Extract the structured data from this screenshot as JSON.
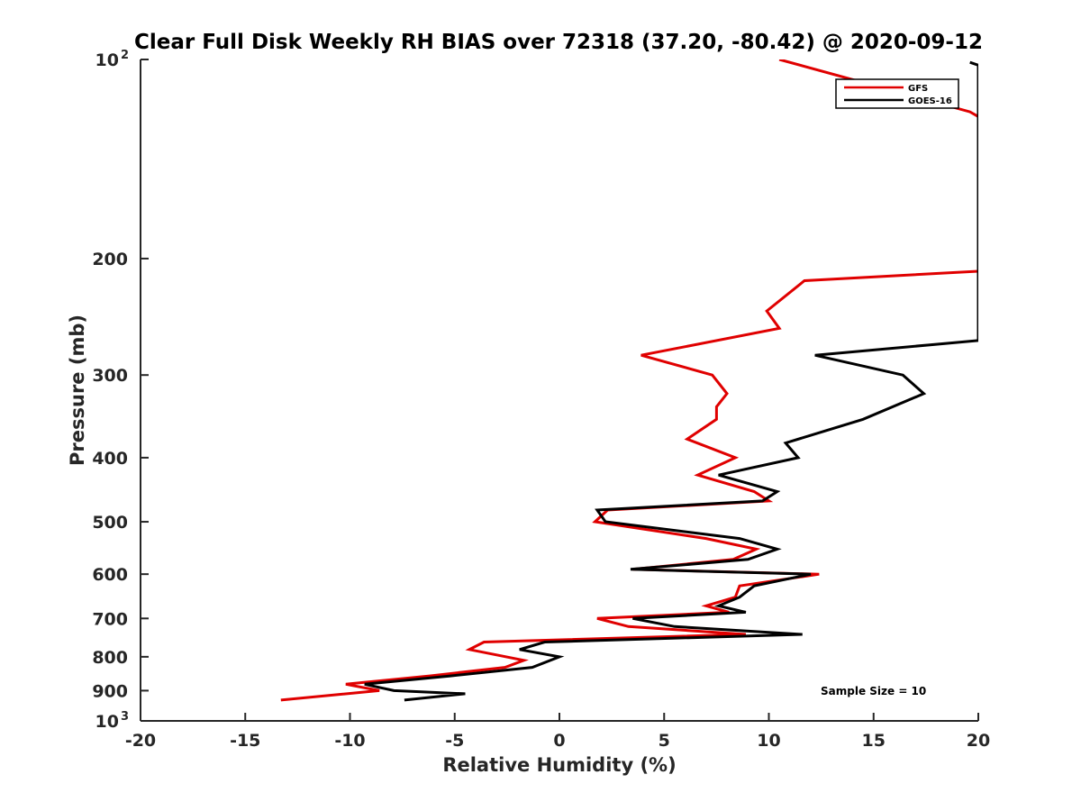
{
  "chart_data": {
    "type": "line",
    "title": "Clear Full Disk Weekly RH BIAS over 72318 (37.20, -80.42) @ 2020-09-12",
    "xlabel": "Relative Humidity (%)",
    "ylabel": "Pressure (mb)",
    "xlim": [
      -20,
      20
    ],
    "ylim": [
      1000,
      100
    ],
    "y_scale": "log",
    "y_reversed": true,
    "x_ticks": [
      -20,
      -15,
      -10,
      -5,
      0,
      5,
      10,
      15,
      20
    ],
    "x_tick_labels": [
      "-20",
      "-15",
      "-10",
      "-5",
      "0",
      "5",
      "10",
      "15",
      "20"
    ],
    "y_ticks": [
      100,
      200,
      300,
      400,
      500,
      600,
      700,
      800,
      900,
      1000
    ],
    "y_tick_labels": [
      {
        "base": "10",
        "exp": "2"
      },
      {
        "base": "200",
        "exp": ""
      },
      {
        "base": "300",
        "exp": ""
      },
      {
        "base": "400",
        "exp": ""
      },
      {
        "base": "500",
        "exp": ""
      },
      {
        "base": "600",
        "exp": ""
      },
      {
        "base": "700",
        "exp": ""
      },
      {
        "base": "800",
        "exp": ""
      },
      {
        "base": "900",
        "exp": ""
      },
      {
        "base": "10",
        "exp": "3"
      }
    ],
    "grid": false,
    "legend_position": "top-right",
    "annotation": "Sample Size = 10",
    "series": [
      {
        "name": "GFS",
        "color": "#e00000",
        "points": [
          [
            10.5,
            100
          ],
          [
            19.6,
            120
          ],
          [
            20,
            122
          ],
          [
            20,
            209
          ],
          [
            11.7,
            216
          ],
          [
            9.9,
            240
          ],
          [
            10.5,
            255
          ],
          [
            3.9,
            280
          ],
          [
            7.3,
            300
          ],
          [
            8.0,
            320
          ],
          [
            7.5,
            335
          ],
          [
            7.5,
            350
          ],
          [
            6.1,
            375
          ],
          [
            8.4,
            400
          ],
          [
            6.6,
            425
          ],
          [
            9.3,
            450
          ],
          [
            10.0,
            465
          ],
          [
            2.3,
            480
          ],
          [
            1.7,
            500
          ],
          [
            7.0,
            530
          ],
          [
            9.4,
            550
          ],
          [
            8.3,
            570
          ],
          [
            3.5,
            590
          ],
          [
            12.4,
            600
          ],
          [
            8.6,
            625
          ],
          [
            8.4,
            650
          ],
          [
            7.0,
            670
          ],
          [
            8.1,
            685
          ],
          [
            1.8,
            700
          ],
          [
            3.3,
            720
          ],
          [
            8.9,
            740
          ],
          [
            -3.6,
            760
          ],
          [
            -4.3,
            780
          ],
          [
            -1.7,
            810
          ],
          [
            -2.6,
            830
          ],
          [
            -6.2,
            855
          ],
          [
            -10.2,
            880
          ],
          [
            -8.6,
            900
          ],
          [
            -13.3,
            930
          ]
        ]
      },
      {
        "name": "GOES-16",
        "color": "#000000",
        "points": [
          [
            19.6,
            101
          ],
          [
            20,
            102
          ],
          [
            20,
            266
          ],
          [
            12.2,
            280
          ],
          [
            16.4,
            300
          ],
          [
            17.4,
            320
          ],
          [
            14.5,
            350
          ],
          [
            10.8,
            380
          ],
          [
            11.4,
            400
          ],
          [
            7.6,
            425
          ],
          [
            10.4,
            450
          ],
          [
            9.7,
            465
          ],
          [
            1.8,
            480
          ],
          [
            2.2,
            500
          ],
          [
            8.6,
            530
          ],
          [
            10.4,
            550
          ],
          [
            9.0,
            570
          ],
          [
            3.4,
            590
          ],
          [
            12.0,
            600
          ],
          [
            9.3,
            625
          ],
          [
            8.6,
            650
          ],
          [
            7.6,
            670
          ],
          [
            8.9,
            685
          ],
          [
            3.5,
            700
          ],
          [
            5.5,
            720
          ],
          [
            11.6,
            740
          ],
          [
            -0.7,
            760
          ],
          [
            -1.9,
            780
          ],
          [
            0,
            800
          ],
          [
            -1.3,
            830
          ],
          [
            -5.2,
            855
          ],
          [
            -9.3,
            880
          ],
          [
            -7.9,
            900
          ],
          [
            -4.5,
            910
          ],
          [
            -7.4,
            930
          ]
        ]
      }
    ]
  }
}
